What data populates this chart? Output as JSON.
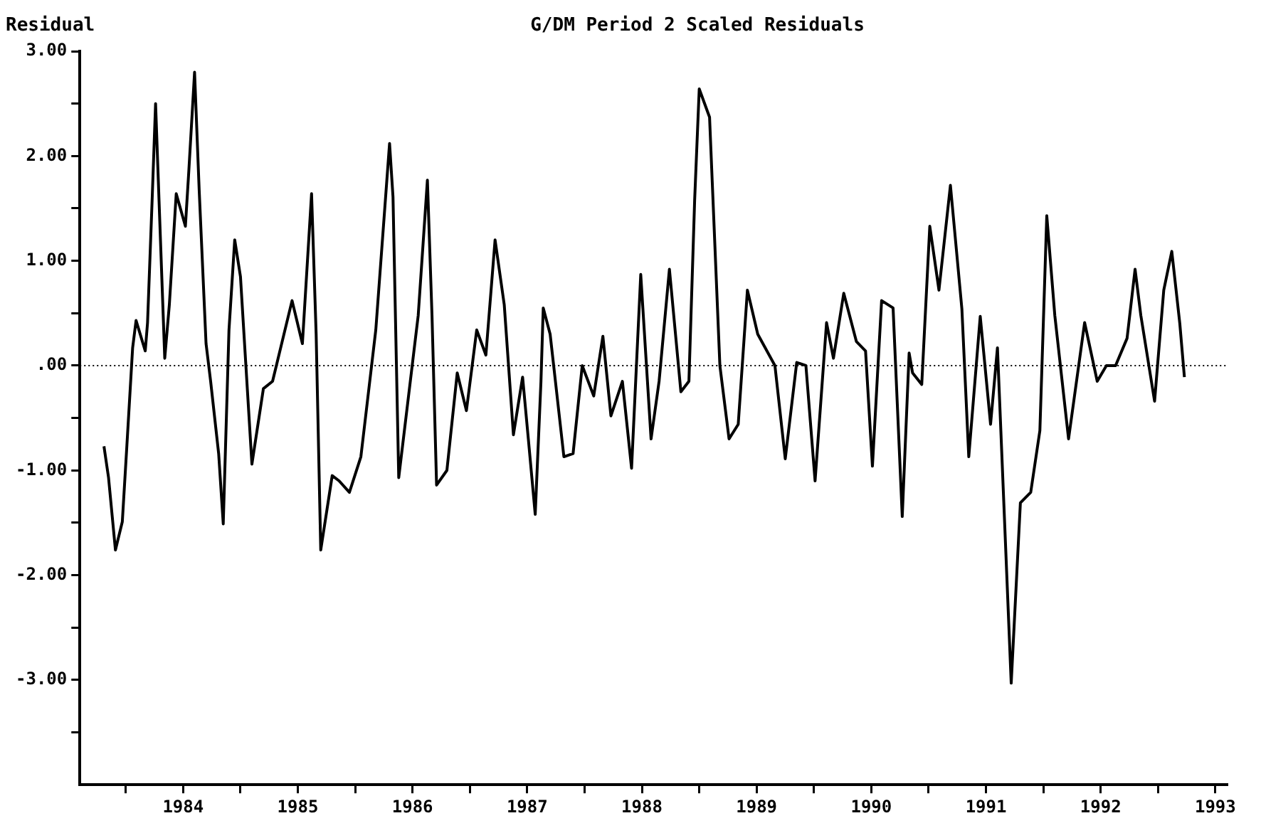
{
  "chart_data": {
    "type": "line",
    "title": "G/DM Period 2 Scaled Residuals",
    "ylabel": "Residual",
    "x": [
      1983.31,
      1983.35,
      1983.41,
      1983.47,
      1983.51,
      1983.56,
      1983.59,
      1983.67,
      1983.69,
      1983.73,
      1983.76,
      1983.79,
      1983.84,
      1983.88,
      1983.94,
      1984.02,
      1984.05,
      1984.1,
      1984.14,
      1984.2,
      1984.24,
      1984.31,
      1984.35,
      1984.4,
      1984.45,
      1984.5,
      1984.6,
      1984.7,
      1984.78,
      1984.95,
      1985.04,
      1985.12,
      1985.16,
      1985.2,
      1985.3,
      1985.36,
      1985.45,
      1985.55,
      1985.68,
      1985.8,
      1985.83,
      1985.88,
      1986.05,
      1986.13,
      1986.17,
      1986.21,
      1986.3,
      1986.39,
      1986.47,
      1986.56,
      1986.64,
      1986.72,
      1986.8,
      1986.88,
      1986.96,
      1987.01,
      1987.07,
      1987.12,
      1987.14,
      1987.2,
      1987.32,
      1987.4,
      1987.48,
      1987.58,
      1987.66,
      1987.73,
      1987.83,
      1987.91,
      1987.99,
      1988.08,
      1988.15,
      1988.24,
      1988.34,
      1988.41,
      1988.46,
      1988.5,
      1988.59,
      1988.68,
      1988.76,
      1988.84,
      1988.92,
      1989.01,
      1989.16,
      1989.25,
      1989.35,
      1989.43,
      1989.51,
      1989.61,
      1989.67,
      1989.76,
      1989.87,
      1989.95,
      1990.01,
      1990.06,
      1990.09,
      1990.19,
      1990.27,
      1990.33,
      1990.36,
      1990.44,
      1990.51,
      1990.59,
      1990.69,
      1990.79,
      1990.85,
      1990.95,
      1991.04,
      1991.1,
      1991.22,
      1991.3,
      1991.39,
      1991.47,
      1991.53,
      1991.6,
      1991.72,
      1991.86,
      1991.97,
      1992.05,
      1992.13,
      1992.23,
      1992.3,
      1992.35,
      1992.47,
      1992.55,
      1992.62,
      1992.69,
      1992.73
    ],
    "series": [
      {
        "color": "#000000",
        "values": [
          -0.77,
          -1.07,
          -1.76,
          -1.49,
          -0.76,
          0.17,
          0.43,
          0.14,
          0.41,
          1.58,
          2.5,
          1.58,
          0.07,
          0.58,
          1.64,
          1.33,
          1.86,
          2.8,
          1.68,
          0.21,
          -0.15,
          -0.84,
          -1.51,
          0.34,
          1.2,
          0.85,
          -0.94,
          -0.22,
          -0.15,
          0.62,
          0.21,
          1.64,
          0.3,
          -1.76,
          -1.05,
          -1.1,
          -1.21,
          -0.87,
          0.34,
          2.12,
          1.61,
          -1.07,
          0.48,
          1.77,
          0.48,
          -1.14,
          -1.0,
          -0.07,
          -0.43,
          0.34,
          0.1,
          1.2,
          0.58,
          -0.66,
          -0.11,
          -0.7,
          -1.42,
          -0.15,
          0.55,
          0.3,
          -0.87,
          -0.84,
          0,
          -0.29,
          0.28,
          -0.48,
          -0.15,
          -0.98,
          0.87,
          -0.7,
          -0.15,
          0.92,
          -0.25,
          -0.15,
          1.58,
          2.64,
          2.37,
          0,
          -0.7,
          -0.56,
          0.72,
          0.3,
          0,
          -0.89,
          0.03,
          0,
          -1.1,
          0.41,
          0.07,
          0.69,
          0.23,
          0.14,
          -0.96,
          0.03,
          0.62,
          0.55,
          -1.44,
          0.12,
          -0.07,
          -0.18,
          1.33,
          0.72,
          1.72,
          0.54,
          -0.87,
          0.47,
          -0.56,
          0.17,
          -3.03,
          -1.31,
          -1.21,
          -0.62,
          1.43,
          0.48,
          -0.7,
          0.41,
          -0.15,
          0,
          0,
          0.26,
          0.92,
          0.48,
          -0.34,
          0.72,
          1.09,
          0.4,
          -0.11
        ]
      }
    ],
    "xlim": [
      1983.1,
      1993.1
    ],
    "xticks": [
      {
        "value": 1983.5,
        "label": null
      },
      {
        "value": 1984,
        "label": "1984"
      },
      {
        "value": 1984.5,
        "label": null
      },
      {
        "value": 1985,
        "label": "1985"
      },
      {
        "value": 1985.5,
        "label": null
      },
      {
        "value": 1986,
        "label": "1986"
      },
      {
        "value": 1986.5,
        "label": null
      },
      {
        "value": 1987,
        "label": "1987"
      },
      {
        "value": 1987.5,
        "label": null
      },
      {
        "value": 1988,
        "label": "1988"
      },
      {
        "value": 1988.5,
        "label": null
      },
      {
        "value": 1989,
        "label": "1989"
      },
      {
        "value": 1989.5,
        "label": null
      },
      {
        "value": 1990,
        "label": "1990"
      },
      {
        "value": 1990.5,
        "label": null
      },
      {
        "value": 1991,
        "label": "1991"
      },
      {
        "value": 1991.5,
        "label": null
      },
      {
        "value": 1992,
        "label": "1992"
      },
      {
        "value": 1992.5,
        "label": null
      },
      {
        "value": 1993,
        "label": "1993"
      }
    ],
    "ylim": [
      -4,
      3
    ],
    "yticks": [
      {
        "value": 3,
        "label": "3.00"
      },
      {
        "value": 2.5,
        "label": null
      },
      {
        "value": 2,
        "label": "2.00"
      },
      {
        "value": 1.5,
        "label": null
      },
      {
        "value": 1,
        "label": "1.00"
      },
      {
        "value": 0.5,
        "label": null
      },
      {
        "value": 0,
        "label": ".00"
      },
      {
        "value": -0.5,
        "label": null
      },
      {
        "value": -1,
        "label": "-1.00"
      },
      {
        "value": -1.5,
        "label": null
      },
      {
        "value": -2,
        "label": "-2.00"
      },
      {
        "value": -2.5,
        "label": null
      },
      {
        "value": -3,
        "label": "-3.00"
      },
      {
        "value": -3.5,
        "label": null
      }
    ],
    "ref_lines": [
      {
        "axis": "y",
        "value": 0,
        "line_style": "dotted",
        "color": "#000000"
      }
    ],
    "grid": false,
    "legend": false,
    "marker": "none",
    "line_style": "solid"
  }
}
